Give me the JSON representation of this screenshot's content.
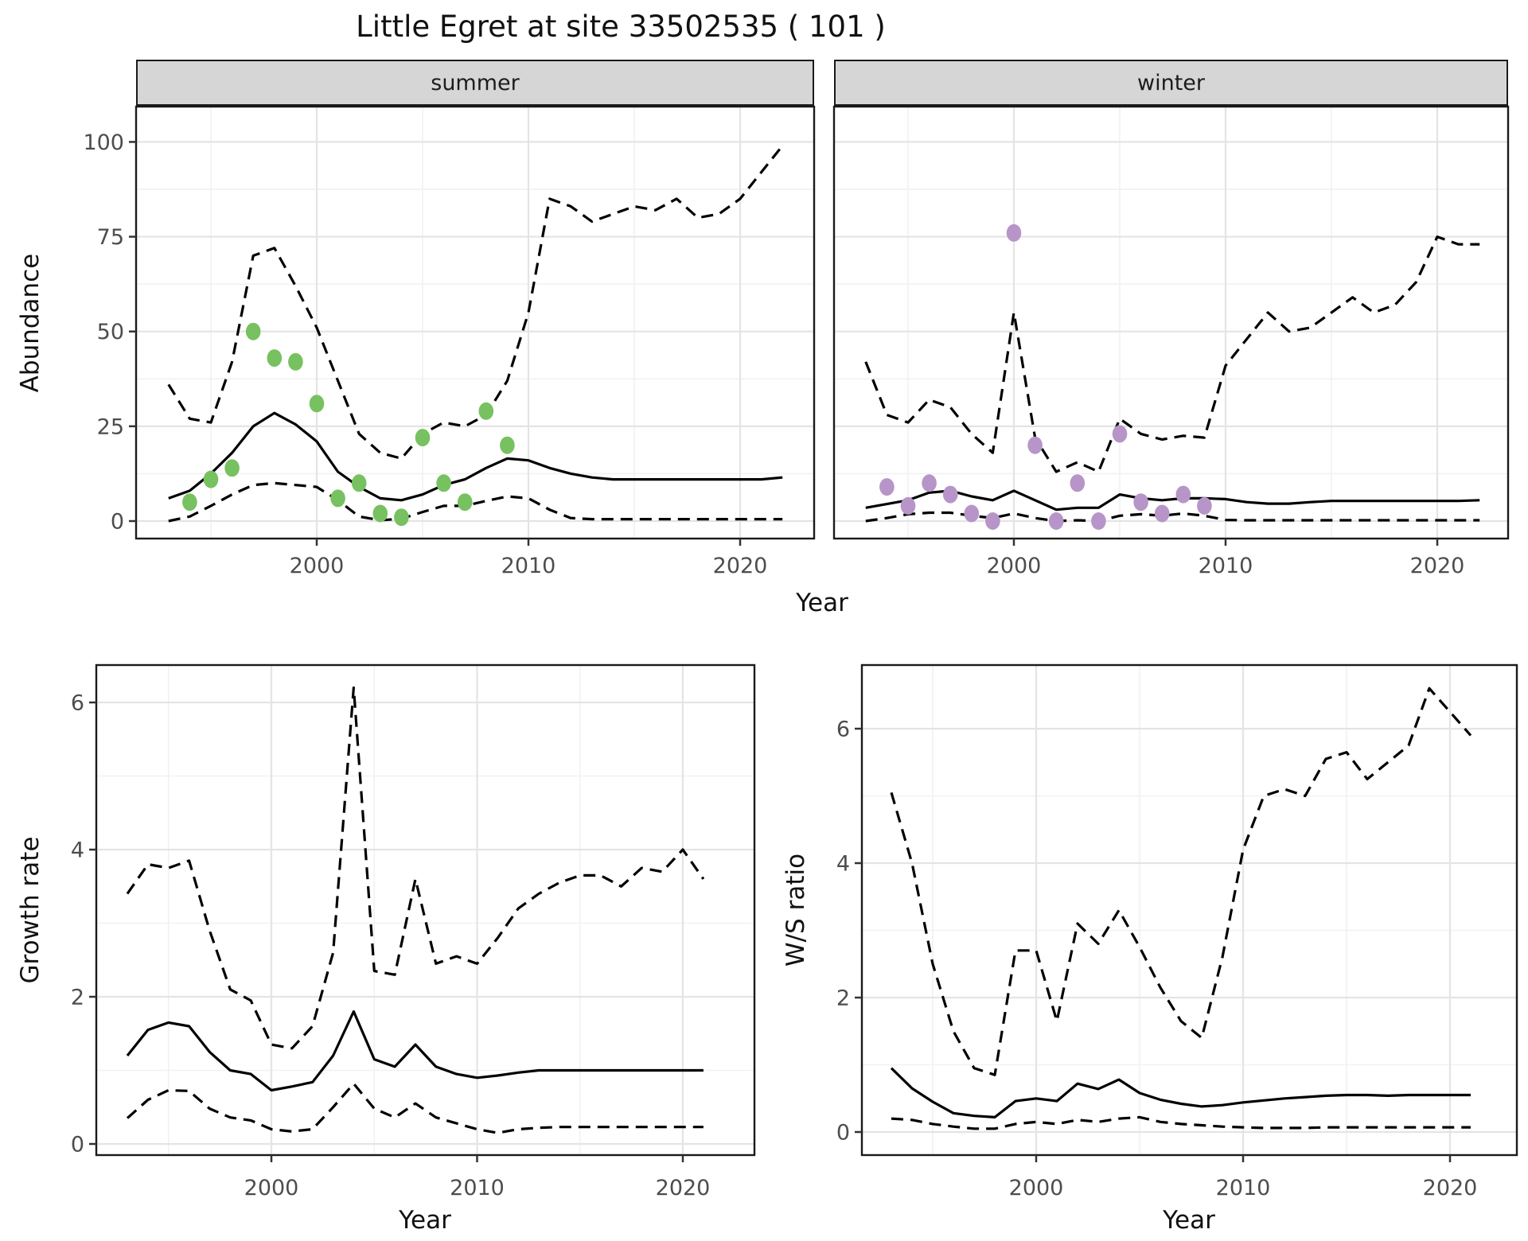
{
  "title": "Little Egret at site 33502535 ( 101 )",
  "axis_labels": {
    "abundance": "Abundance",
    "year": "Year",
    "growth": "Growth rate",
    "ws": "W/S ratio"
  },
  "facets": [
    {
      "label": "summer"
    },
    {
      "label": "winter"
    }
  ],
  "colors": {
    "summer_point": "#77C161",
    "winter_point": "#B795C8",
    "line": "#000000",
    "grid_major": "#e4e4e4",
    "grid_minor": "#f1f1f1",
    "strip_bg": "#d6d6d6",
    "panel_border": "#1a1a1a",
    "tick_text": "#4d4d4d"
  },
  "chart_data": [
    {
      "type": "line",
      "panel": "abundance-summer",
      "facet": "summer",
      "xlabel": "Year",
      "ylabel": "Abundance",
      "x": [
        1993,
        1994,
        1995,
        1996,
        1997,
        1998,
        1999,
        2000,
        2001,
        2002,
        2003,
        2004,
        2005,
        2006,
        2007,
        2008,
        2009,
        2010,
        2011,
        2012,
        2013,
        2014,
        2015,
        2016,
        2017,
        2018,
        2019,
        2020,
        2021,
        2022
      ],
      "series": [
        {
          "name": "mean",
          "style": "solid",
          "values": [
            6,
            8,
            12.5,
            18,
            25,
            28.5,
            25.5,
            21,
            13,
            9,
            6,
            5.5,
            7,
            9.5,
            11,
            14,
            16.5,
            16,
            14,
            12.5,
            11.5,
            11,
            11,
            11,
            11,
            11,
            11,
            11,
            11,
            11.5
          ]
        },
        {
          "name": "upper_ci",
          "style": "dashed",
          "values": [
            36,
            27,
            26,
            42,
            70,
            72,
            62,
            51,
            37,
            23,
            18,
            16.5,
            23,
            26,
            25,
            28,
            37,
            55,
            85,
            83,
            79,
            81,
            83,
            82,
            85,
            80,
            81,
            85,
            92,
            99
          ]
        },
        {
          "name": "lower_ci",
          "style": "dashed",
          "values": [
            0,
            1.2,
            4,
            7,
            9.5,
            10,
            9.5,
            9,
            5.5,
            1.2,
            0.2,
            0.6,
            2.4,
            4,
            4,
            5.3,
            6.5,
            6,
            3,
            0.8,
            0.5,
            0.5,
            0.5,
            0.5,
            0.5,
            0.5,
            0.5,
            0.5,
            0.5,
            0.5
          ]
        }
      ],
      "points": {
        "name": "observed",
        "color": "#77C161",
        "xy": [
          [
            1994,
            5
          ],
          [
            1995,
            11
          ],
          [
            1996,
            14
          ],
          [
            1997,
            50
          ],
          [
            1998,
            43
          ],
          [
            1999,
            42
          ],
          [
            2000,
            31
          ],
          [
            2001,
            6
          ],
          [
            2002,
            10
          ],
          [
            2003,
            2
          ],
          [
            2004,
            1
          ],
          [
            2005,
            22
          ],
          [
            2006,
            10
          ],
          [
            2007,
            5
          ],
          [
            2008,
            29
          ],
          [
            2009,
            20
          ]
        ]
      },
      "x_ticks": [
        2000,
        2010,
        2020
      ],
      "x_minor": [
        1995,
        2005,
        2015
      ],
      "y_ticks": [
        0,
        25,
        50,
        75,
        100
      ],
      "y_minor": [
        12.5,
        37.5,
        62.5,
        87.5
      ],
      "xlim": [
        1991.5,
        2023.5
      ],
      "ylim": [
        -4.6,
        109.3
      ],
      "grid": true,
      "legend": "none"
    },
    {
      "type": "line",
      "panel": "abundance-winter",
      "facet": "winter",
      "xlabel": "Year",
      "ylabel": "Abundance",
      "x": [
        1993,
        1994,
        1995,
        1996,
        1997,
        1998,
        1999,
        2000,
        2001,
        2002,
        2003,
        2004,
        2005,
        2006,
        2007,
        2008,
        2009,
        2010,
        2011,
        2012,
        2013,
        2014,
        2015,
        2016,
        2017,
        2018,
        2019,
        2020,
        2021,
        2022
      ],
      "series": [
        {
          "name": "mean",
          "style": "solid",
          "values": [
            3.5,
            4.5,
            5.5,
            7.5,
            8,
            6.5,
            5.5,
            8,
            5.5,
            3,
            3.5,
            3.5,
            7,
            6,
            5.5,
            6,
            6,
            5.8,
            5,
            4.6,
            4.6,
            5,
            5.3,
            5.3,
            5.3,
            5.3,
            5.3,
            5.3,
            5.3,
            5.5
          ]
        },
        {
          "name": "upper_ci",
          "style": "dashed",
          "values": [
            42,
            28,
            26,
            32,
            30,
            23,
            18,
            55,
            22,
            13,
            15.5,
            13,
            27,
            23,
            21.5,
            22.5,
            22,
            41,
            48,
            55,
            50,
            51,
            55,
            59,
            55,
            57,
            63,
            75,
            73,
            73
          ]
        },
        {
          "name": "lower_ci",
          "style": "dashed",
          "values": [
            0,
            0.8,
            1.8,
            2.2,
            2.2,
            1.4,
            0.8,
            2,
            0.8,
            0,
            0.2,
            0,
            1.4,
            1.8,
            1.4,
            2,
            1.4,
            0.3,
            0.2,
            0.2,
            0.2,
            0.2,
            0.2,
            0.2,
            0.2,
            0.2,
            0.2,
            0.2,
            0.2,
            0.2
          ]
        }
      ],
      "points": {
        "name": "observed",
        "color": "#B795C8",
        "xy": [
          [
            1994,
            9
          ],
          [
            1995,
            4
          ],
          [
            1996,
            10
          ],
          [
            1997,
            7
          ],
          [
            1998,
            2
          ],
          [
            1999,
            0
          ],
          [
            2000,
            76
          ],
          [
            2001,
            20
          ],
          [
            2002,
            0
          ],
          [
            2003,
            10
          ],
          [
            2004,
            0
          ],
          [
            2005,
            23
          ],
          [
            2006,
            5
          ],
          [
            2007,
            2
          ],
          [
            2008,
            7
          ],
          [
            2009,
            4
          ]
        ]
      },
      "x_ticks": [
        2000,
        2010,
        2020
      ],
      "x_minor": [
        1995,
        2005,
        2015
      ],
      "y_ticks": [
        0,
        25,
        50,
        75,
        100
      ],
      "y_minor": [
        12.5,
        37.5,
        62.5,
        87.5
      ],
      "xlim": [
        1991.5,
        2023.5
      ],
      "ylim": [
        -4.6,
        109.3
      ],
      "grid": true,
      "legend": "none"
    },
    {
      "type": "line",
      "panel": "growth-rate",
      "facet": null,
      "xlabel": "Year",
      "ylabel": "Growth rate",
      "x": [
        1993,
        1994,
        1995,
        1996,
        1997,
        1998,
        1999,
        2000,
        2001,
        2002,
        2003,
        2004,
        2005,
        2006,
        2007,
        2008,
        2009,
        2010,
        2011,
        2012,
        2013,
        2014,
        2015,
        2016,
        2017,
        2018,
        2019,
        2020,
        2021
      ],
      "series": [
        {
          "name": "mean",
          "style": "solid",
          "values": [
            1.2,
            1.55,
            1.65,
            1.6,
            1.25,
            1.0,
            0.95,
            0.73,
            0.78,
            0.84,
            1.2,
            1.8,
            1.15,
            1.05,
            1.35,
            1.05,
            0.95,
            0.9,
            0.93,
            0.97,
            1.0,
            1.0,
            1.0,
            1.0,
            1.0,
            1.0,
            1.0,
            1.0,
            1.0
          ]
        },
        {
          "name": "upper_ci",
          "style": "dashed",
          "values": [
            3.4,
            3.8,
            3.75,
            3.85,
            2.9,
            2.1,
            1.95,
            1.35,
            1.3,
            1.6,
            2.6,
            6.2,
            2.35,
            2.3,
            3.6,
            2.45,
            2.55,
            2.45,
            2.8,
            3.2,
            3.4,
            3.55,
            3.65,
            3.65,
            3.5,
            3.75,
            3.7,
            4.0,
            3.6
          ]
        },
        {
          "name": "lower_ci",
          "style": "dashed",
          "values": [
            0.35,
            0.6,
            0.73,
            0.72,
            0.48,
            0.36,
            0.32,
            0.2,
            0.17,
            0.2,
            0.5,
            0.82,
            0.48,
            0.36,
            0.55,
            0.36,
            0.28,
            0.2,
            0.15,
            0.2,
            0.22,
            0.23,
            0.23,
            0.23,
            0.23,
            0.23,
            0.23,
            0.23,
            0.23
          ]
        }
      ],
      "points": null,
      "x_ticks": [
        2000,
        2010,
        2020
      ],
      "x_minor": [
        1995,
        2005,
        2015
      ],
      "y_ticks": [
        0,
        2,
        4,
        6
      ],
      "y_minor": [
        1,
        3,
        5
      ],
      "xlim": [
        1991.5,
        2023.5
      ],
      "ylim": [
        -0.15,
        6.5
      ],
      "grid": true,
      "legend": "none"
    },
    {
      "type": "line",
      "panel": "ws-ratio",
      "facet": null,
      "xlabel": "Year",
      "ylabel": "W/S ratio",
      "x": [
        1993,
        1994,
        1995,
        1996,
        1997,
        1998,
        1999,
        2000,
        2001,
        2002,
        2003,
        2004,
        2005,
        2006,
        2007,
        2008,
        2009,
        2010,
        2011,
        2012,
        2013,
        2014,
        2015,
        2016,
        2017,
        2018,
        2019,
        2020,
        2021
      ],
      "series": [
        {
          "name": "mean",
          "style": "solid",
          "values": [
            0.95,
            0.65,
            0.45,
            0.28,
            0.24,
            0.22,
            0.46,
            0.5,
            0.46,
            0.72,
            0.64,
            0.78,
            0.58,
            0.48,
            0.42,
            0.38,
            0.4,
            0.44,
            0.47,
            0.5,
            0.52,
            0.54,
            0.55,
            0.55,
            0.54,
            0.55,
            0.55,
            0.55,
            0.55
          ]
        },
        {
          "name": "upper_ci",
          "style": "dashed",
          "values": [
            5.05,
            4.0,
            2.5,
            1.5,
            0.95,
            0.85,
            2.7,
            2.7,
            1.65,
            3.1,
            2.8,
            3.3,
            2.75,
            2.15,
            1.65,
            1.4,
            2.6,
            4.2,
            5.0,
            5.1,
            5.0,
            5.55,
            5.65,
            5.25,
            5.5,
            5.75,
            6.6,
            6.25,
            5.9
          ]
        },
        {
          "name": "lower_ci",
          "style": "dashed",
          "values": [
            0.2,
            0.18,
            0.12,
            0.08,
            0.05,
            0.05,
            0.12,
            0.15,
            0.12,
            0.18,
            0.15,
            0.2,
            0.22,
            0.15,
            0.12,
            0.1,
            0.08,
            0.07,
            0.06,
            0.06,
            0.06,
            0.07,
            0.07,
            0.07,
            0.07,
            0.07,
            0.07,
            0.07,
            0.07
          ]
        }
      ],
      "points": null,
      "x_ticks": [
        2000,
        2010,
        2020
      ],
      "x_minor": [
        1995,
        2005,
        2015
      ],
      "y_ticks": [
        0,
        2,
        4,
        6
      ],
      "y_minor": [
        1,
        3,
        5
      ],
      "xlim": [
        1991.6,
        2023.2
      ],
      "ylim": [
        -0.34,
        6.95
      ],
      "grid": true,
      "legend": "none"
    }
  ]
}
